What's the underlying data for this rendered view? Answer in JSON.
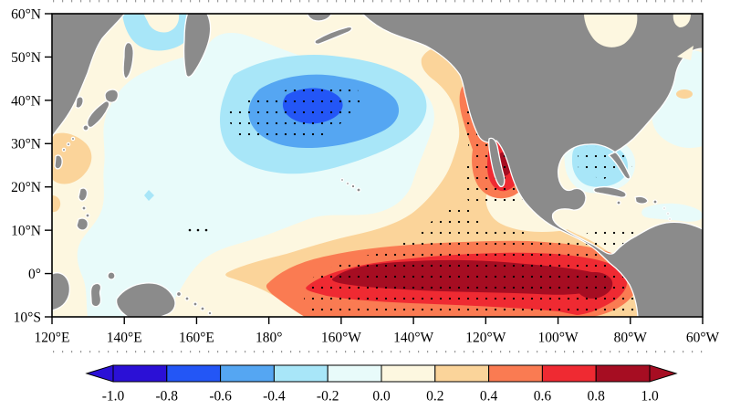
{
  "figure": {
    "kind": "filled-contour-anomaly-map",
    "description": "Pacific sea-surface temperature anomaly map (El Nino-like pattern): equatorial warming tongue with stippled significance, North Pacific cooling center, warming off Baja California, slight cooling in the Gulf of Mexico.",
    "region_shown": "120E-60W, 10S-60N"
  },
  "palette": {
    "land": "#8b8b8b",
    "coast": "#ffffff",
    "frame": "#000000",
    "crop_marks": "#9a9a9a",
    "stipple": "#000000",
    "neg5": "#2b10d6",
    "neg4": "#2356f6",
    "neg3": "#55a6f2",
    "neg2": "#a8e6f8",
    "neg1": "#e8fbfa",
    "pos1": "#fdf7e0",
    "pos2": "#fbd49a",
    "pos3": "#fa7b52",
    "pos4": "#ef2a32",
    "pos5": "#a60d22"
  },
  "chart_data": {
    "type": "heatmap",
    "subtype": "filled-contour-map-with-stippling",
    "title": "",
    "xlabel": "",
    "ylabel": "",
    "x_axis": {
      "tick_labels": [
        "120°E",
        "140°E",
        "160°E",
        "180°",
        "160°W",
        "140°W",
        "120°W",
        "100°W",
        "80°W",
        "60°W"
      ],
      "lon_deg_east": [
        120,
        140,
        160,
        180,
        200,
        220,
        240,
        260,
        280,
        300
      ],
      "range_deg_east": [
        120,
        300
      ]
    },
    "y_axis": {
      "tick_labels": [
        "60°N",
        "50°N",
        "40°N",
        "30°N",
        "20°N",
        "10°N",
        "0°",
        "10°S"
      ],
      "lat_deg_north": [
        60,
        50,
        40,
        30,
        20,
        10,
        0,
        -10
      ],
      "range_deg_north": [
        -10,
        60
      ]
    },
    "colorbar": {
      "tick_labels": [
        "-1.0",
        "-0.8",
        "-0.6",
        "-0.4",
        "-0.2",
        "0.0",
        "0.2",
        "0.4",
        "0.6",
        "0.8",
        "1.0"
      ],
      "levels": [
        -1.0,
        -0.8,
        -0.6,
        -0.4,
        -0.2,
        0.0,
        0.2,
        0.4,
        0.6,
        0.8,
        1.0
      ],
      "segment_color_keys": [
        "neg5",
        "neg4",
        "neg3",
        "neg2",
        "neg1",
        "pos1",
        "pos2",
        "pos3",
        "pos4",
        "pos5"
      ],
      "below_arrow_color_key": "neg5",
      "above_arrow_color_key": "pos5",
      "orientation": "horizontal"
    },
    "features": [
      {
        "name": "equatorial-warming-tongue",
        "region": "about 165E-80W along the equator, 10S-10N",
        "peak_anomaly": "greater than 1.0",
        "core_anomaly_band": "0.8 to 1.0+",
        "stippled": true
      },
      {
        "name": "north-pacific-cooling-center",
        "region": "about 170E-150W, 30N-45N",
        "min_anomaly": "-0.8 to -0.6",
        "stippled": true
      },
      {
        "name": "baja-california-warming",
        "region": "near 110W-115W, 18N-30N and along North American west coast",
        "peak_anomaly": "0.8 to 1.0",
        "stippled": true
      },
      {
        "name": "gulf-of-mexico-cooling",
        "region": "Gulf of Mexico",
        "anomaly": "-0.4 to -0.2",
        "stippled": true
      },
      {
        "name": "west-pacific-weak-cooling",
        "region": "western tropical Pacific and Philippine Sea",
        "anomaly": "-0.2 to 0.0",
        "stippled": false
      },
      {
        "name": "taiwan-south-china-sea-warm-patch",
        "region": "near 120E-130E, 15N-25N",
        "anomaly": "0.2 to 0.4",
        "stippled": false
      },
      {
        "name": "sporadic-significance-dots",
        "region": "near 160E, 10N",
        "count": 3
      }
    ]
  }
}
